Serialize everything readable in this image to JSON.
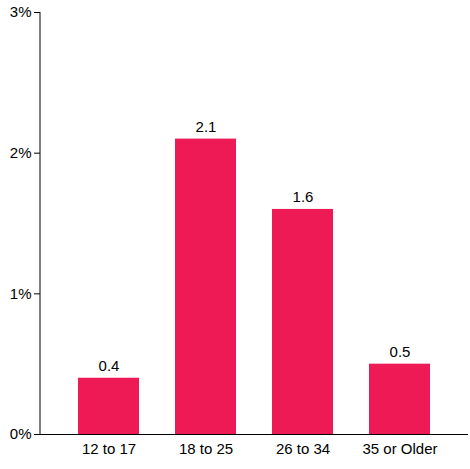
{
  "chart_data": {
    "type": "bar",
    "categories": [
      "12 to 17",
      "18 to 25",
      "26 to 34",
      "35 or Older"
    ],
    "values": [
      0.4,
      2.1,
      1.6,
      0.5
    ],
    "color": "#ee1a55",
    "ylim": [
      0,
      3
    ],
    "yticks": [
      {
        "value": 0,
        "label": "0%"
      },
      {
        "value": 1,
        "label": "1%"
      },
      {
        "value": 2,
        "label": "2%"
      },
      {
        "value": 3,
        "label": "3%"
      }
    ],
    "grid": false,
    "data_labels": true
  }
}
